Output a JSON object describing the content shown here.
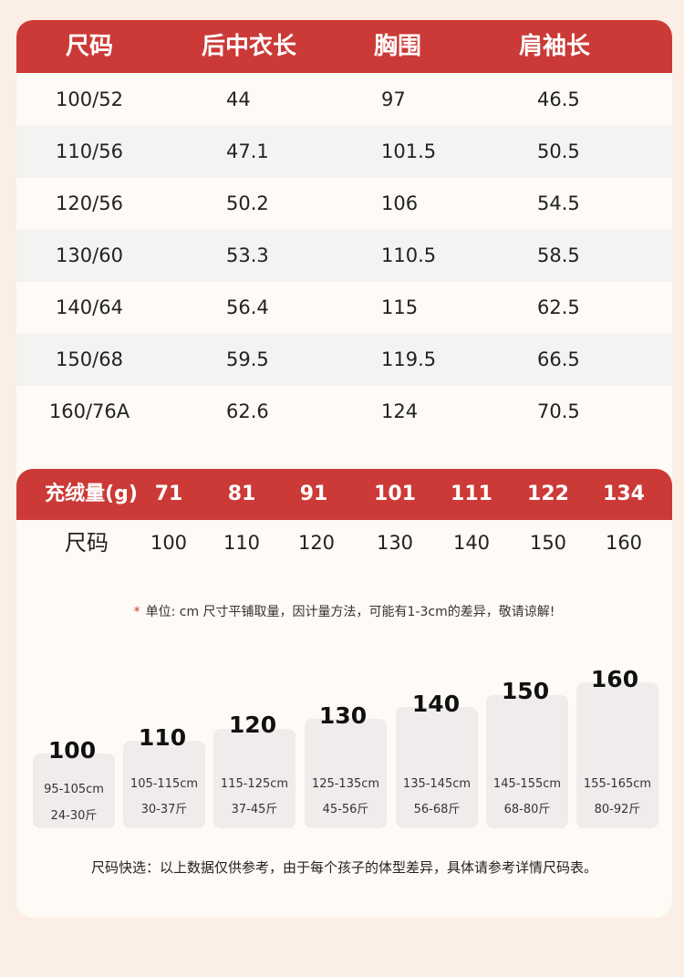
{
  "size_table": {
    "headers": [
      "尺码",
      "后中衣长",
      "胸围",
      "肩袖长"
    ],
    "rows": [
      [
        "100/52",
        "44",
        "97",
        "46.5"
      ],
      [
        "110/56",
        "47.1",
        "101.5",
        "50.5"
      ],
      [
        "120/56",
        "50.2",
        "106",
        "54.5"
      ],
      [
        "130/60",
        "53.3",
        "110.5",
        "58.5"
      ],
      [
        "140/64",
        "56.4",
        "115",
        "62.5"
      ],
      [
        "150/68",
        "59.5",
        "119.5",
        "66.5"
      ],
      [
        "160/76A",
        "62.6",
        "124",
        "70.5"
      ]
    ]
  },
  "fill_table": {
    "header_label": "充绒量(g)",
    "fill_values": [
      "71",
      "81",
      "91",
      "101",
      "111",
      "122",
      "134"
    ],
    "size_label": "尺码",
    "sizes": [
      "100",
      "110",
      "120",
      "130",
      "140",
      "150",
      "160"
    ]
  },
  "note": {
    "star": "*",
    "text": "单位: cm 尺寸平铺取量，因计量方法，可能有1-3cm的差异，敬请谅解!"
  },
  "size_guide": [
    {
      "size": "100",
      "height": "95-105cm",
      "weight": "24-30斤"
    },
    {
      "size": "110",
      "height": "105-115cm",
      "weight": "30-37斤"
    },
    {
      "size": "120",
      "height": "115-125cm",
      "weight": "37-45斤"
    },
    {
      "size": "130",
      "height": "125-135cm",
      "weight": "45-56斤"
    },
    {
      "size": "140",
      "height": "135-145cm",
      "weight": "56-68斤"
    },
    {
      "size": "150",
      "height": "145-155cm",
      "weight": "68-80斤"
    },
    {
      "size": "160",
      "height": "155-165cm",
      "weight": "80-92斤"
    }
  ],
  "footer": "尺码快选：以上数据仅供参考，由于每个孩子的体型差异，具体请参考详情尺码表。",
  "colors": {
    "header_red": "#cb3a36",
    "page_bg": "#fbeee4",
    "card_bg": "#fefaf5",
    "stripe": "#f4f3f2",
    "size_box": "#f0eceb"
  }
}
